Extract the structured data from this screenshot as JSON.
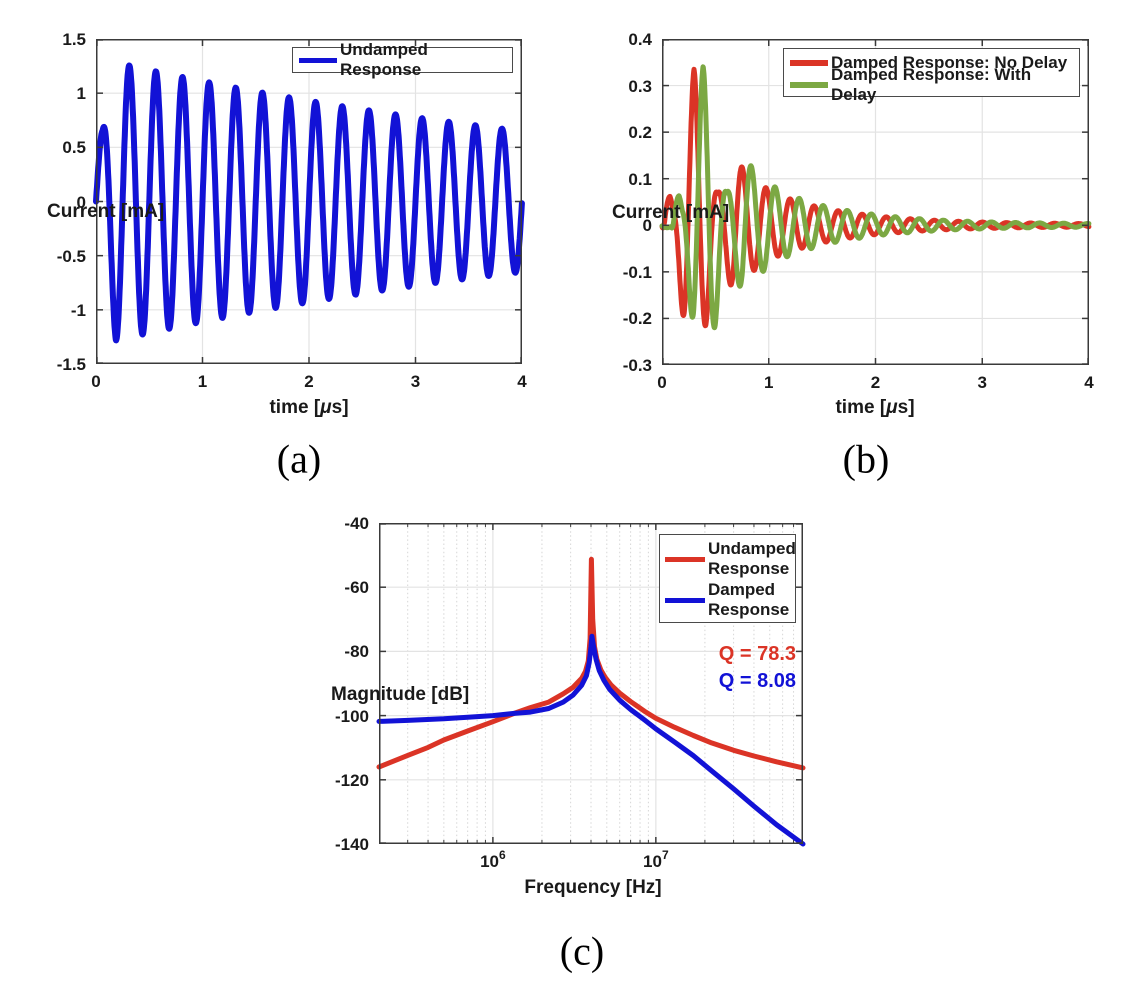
{
  "figure": {
    "captions": {
      "a": "(a)",
      "b": "(b)",
      "c": "(c)"
    }
  },
  "colors": {
    "blue": "#1212D6",
    "red": "#DB3426",
    "green": "#7CA843",
    "axis": "#3a3a3a",
    "grid": "#e3e3e3",
    "minor_grid": "#d6d6d6",
    "text": "#1a1a1a"
  },
  "chart_data": [
    {
      "id": "a",
      "type": "line",
      "xlabel_pre": "time [",
      "xlabel_mu": "μ",
      "xlabel_post": "s]",
      "ylabel": "Current [mA]",
      "xlim": [
        0,
        4
      ],
      "ylim": [
        -1.5,
        1.5
      ],
      "xticks": [
        {
          "v": 0,
          "label": "0"
        },
        {
          "v": 1,
          "label": "1"
        },
        {
          "v": 2,
          "label": "2"
        },
        {
          "v": 3,
          "label": "3"
        },
        {
          "v": 4,
          "label": "4"
        }
      ],
      "yticks": [
        {
          "v": 1.5,
          "label": "1.5"
        },
        {
          "v": 1,
          "label": "1"
        },
        {
          "v": 0.5,
          "label": "0.5"
        },
        {
          "v": 0,
          "label": "0"
        },
        {
          "v": -0.5,
          "label": "-0.5"
        },
        {
          "v": -1,
          "label": "-1"
        },
        {
          "v": -1.5,
          "label": "-1.5"
        }
      ],
      "xgrid": [
        1,
        2,
        3
      ],
      "ygrid": [
        -1,
        -0.5,
        0,
        0.5,
        1
      ],
      "series": [
        {
          "name": "Undamped Response",
          "color_key": "blue",
          "model": "envelope_modulated_sine",
          "freq_cycles_per_us": 4.0,
          "phase_rad": 0,
          "delay_us": 0,
          "amplitude_scale": 1,
          "envelope_t_mA": [
            [
              0,
              0.6
            ],
            [
              0.0625,
              0.655
            ],
            [
              0.125,
              1.0
            ],
            [
              0.1875,
              1.283
            ],
            [
              0.45,
              1.225
            ],
            [
              0.7,
              1.172
            ],
            [
              0.95,
              1.121
            ],
            [
              1.2,
              1.072
            ],
            [
              1.45,
              1.025
            ],
            [
              1.7,
              0.98
            ],
            [
              1.95,
              0.938
            ],
            [
              2.2,
              0.897
            ],
            [
              2.45,
              0.858
            ],
            [
              2.7,
              0.82
            ],
            [
              2.95,
              0.785
            ],
            [
              3.2,
              0.75
            ],
            [
              3.45,
              0.718
            ],
            [
              3.7,
              0.686
            ],
            [
              4.0,
              0.65
            ]
          ]
        }
      ]
    },
    {
      "id": "b",
      "type": "line",
      "xlabel_pre": "time [",
      "xlabel_mu": "μ",
      "xlabel_post": "s]",
      "ylabel": "Current [mA]",
      "xlim": [
        0,
        4
      ],
      "ylim": [
        -0.3,
        0.4
      ],
      "xticks": [
        {
          "v": 0,
          "label": "0"
        },
        {
          "v": 1,
          "label": "1"
        },
        {
          "v": 2,
          "label": "2"
        },
        {
          "v": 3,
          "label": "3"
        },
        {
          "v": 4,
          "label": "4"
        }
      ],
      "yticks": [
        {
          "v": 0.4,
          "label": "0.4"
        },
        {
          "v": 0.3,
          "label": "0.3"
        },
        {
          "v": 0.2,
          "label": "0.2"
        },
        {
          "v": 0.1,
          "label": "0.1"
        },
        {
          "v": 0,
          "label": "0"
        },
        {
          "v": -0.1,
          "label": "-0.1"
        },
        {
          "v": -0.2,
          "label": "-0.2"
        },
        {
          "v": -0.3,
          "label": "-0.3"
        }
      ],
      "xgrid": [
        1,
        2,
        3
      ],
      "ygrid": [
        0.3,
        0.2,
        0.1,
        0,
        -0.1,
        -0.2
      ],
      "series": [
        {
          "name": "Damped Response: No Delay",
          "color_key": "red",
          "model": "envelope_modulated_sine",
          "freq_cycles_per_us": 4.44,
          "phase_rad": -0.515,
          "delay_us": 0,
          "amplitude_scale": 1,
          "envelope_t_mA": [
            [
              0,
              0.005
            ],
            [
              0.03,
              0.062
            ],
            [
              0.075,
              0.062
            ],
            [
              0.105,
              0.045
            ],
            [
              0.125,
              0.062
            ],
            [
              0.16,
              0.12
            ],
            [
              0.21,
              0.228
            ],
            [
              0.3,
              0.335
            ],
            [
              0.41,
              0.215
            ],
            [
              0.47,
              0.12
            ],
            [
              0.52,
              0.068
            ],
            [
              0.6,
              0.1
            ],
            [
              0.67,
              0.148
            ],
            [
              0.75,
              0.125
            ],
            [
              0.82,
              0.1
            ],
            [
              0.92,
              0.093
            ],
            [
              1.0,
              0.075
            ],
            [
              1.15,
              0.06
            ],
            [
              1.3,
              0.05
            ],
            [
              1.45,
              0.04
            ],
            [
              1.6,
              0.033
            ],
            [
              1.8,
              0.026
            ],
            [
              2.0,
              0.02
            ],
            [
              2.2,
              0.016
            ],
            [
              2.45,
              0.012
            ],
            [
              2.7,
              0.009
            ],
            [
              3.0,
              0.007
            ],
            [
              3.3,
              0.0055
            ],
            [
              3.6,
              0.0045
            ],
            [
              4.0,
              0.0035
            ]
          ]
        },
        {
          "name": "Damped Response: With Delay",
          "color_key": "green",
          "model": "envelope_modulated_sine",
          "freq_cycles_per_us": 4.44,
          "phase_rad": -0.515,
          "delay_us": 0.085,
          "amplitude_scale": 1.02,
          "envelope_t_mA": [
            [
              0,
              0.005
            ],
            [
              0.03,
              0.062
            ],
            [
              0.075,
              0.062
            ],
            [
              0.105,
              0.045
            ],
            [
              0.125,
              0.062
            ],
            [
              0.16,
              0.12
            ],
            [
              0.21,
              0.228
            ],
            [
              0.3,
              0.335
            ],
            [
              0.41,
              0.215
            ],
            [
              0.47,
              0.12
            ],
            [
              0.52,
              0.068
            ],
            [
              0.6,
              0.1
            ],
            [
              0.67,
              0.148
            ],
            [
              0.75,
              0.125
            ],
            [
              0.82,
              0.1
            ],
            [
              0.92,
              0.093
            ],
            [
              1.0,
              0.075
            ],
            [
              1.15,
              0.06
            ],
            [
              1.3,
              0.05
            ],
            [
              1.45,
              0.04
            ],
            [
              1.6,
              0.033
            ],
            [
              1.8,
              0.026
            ],
            [
              2.0,
              0.02
            ],
            [
              2.2,
              0.016
            ],
            [
              2.45,
              0.012
            ],
            [
              2.7,
              0.009
            ],
            [
              3.0,
              0.007
            ],
            [
              3.3,
              0.0055
            ],
            [
              3.6,
              0.0045
            ],
            [
              4.0,
              0.0035
            ]
          ]
        }
      ]
    },
    {
      "id": "c",
      "type": "line_logx",
      "xlabel": "Frequency [Hz]",
      "ylabel": "Magnitude [dB]",
      "xlim": [
        200000,
        80000000
      ],
      "ylim": [
        -140,
        -40
      ],
      "xticks": [
        {
          "v": 1000000,
          "base": "10",
          "exp": "6"
        },
        {
          "v": 10000000,
          "base": "10",
          "exp": "7"
        }
      ],
      "yticks": [
        {
          "v": -40,
          "label": "-40"
        },
        {
          "v": -60,
          "label": "-60"
        },
        {
          "v": -80,
          "label": "-80"
        },
        {
          "v": -100,
          "label": "-100"
        },
        {
          "v": -120,
          "label": "-120"
        },
        {
          "v": -140,
          "label": "-140"
        }
      ],
      "ygrid": [
        -60,
        -80,
        -100,
        -120
      ],
      "resonance_hz": 4000000,
      "series": [
        {
          "name": "Undamped Response",
          "color_key": "red",
          "points_hz_db": [
            [
              200000,
              -116.0
            ],
            [
              300000,
              -112.4
            ],
            [
              400000,
              -109.9
            ],
            [
              500000,
              -107.6
            ],
            [
              700000,
              -104.8
            ],
            [
              1000000,
              -101.9
            ],
            [
              1350000,
              -99.3
            ],
            [
              1700000,
              -97.5
            ],
            [
              2200000,
              -95.8
            ],
            [
              2700000,
              -93.2
            ],
            [
              3100000,
              -91.2
            ],
            [
              3500000,
              -88.4
            ],
            [
              3700000,
              -86.2
            ],
            [
              3850000,
              -83.0
            ],
            [
              3950000,
              -76.0
            ],
            [
              4020000,
              -51.3
            ],
            [
              4100000,
              -70.0
            ],
            [
              4200000,
              -78.5
            ],
            [
              4350000,
              -82.5
            ],
            [
              4600000,
              -85.8
            ],
            [
              4900000,
              -88.2
            ],
            [
              5300000,
              -90.4
            ],
            [
              6000000,
              -93.0
            ],
            [
              7000000,
              -95.6
            ],
            [
              8500000,
              -98.6
            ],
            [
              10000000,
              -100.8
            ],
            [
              13000000,
              -103.6
            ],
            [
              17000000,
              -106.2
            ],
            [
              22000000,
              -108.5
            ],
            [
              30000000,
              -110.8
            ],
            [
              40000000,
              -112.6
            ],
            [
              55000000,
              -114.4
            ],
            [
              80000000,
              -116.3
            ]
          ]
        },
        {
          "name": "Damped Response",
          "color_key": "blue",
          "points_hz_db": [
            [
              200000,
              -101.8
            ],
            [
              300000,
              -101.5
            ],
            [
              500000,
              -101.0
            ],
            [
              700000,
              -100.5
            ],
            [
              1000000,
              -100.0
            ],
            [
              1350000,
              -99.3
            ],
            [
              1700000,
              -98.9
            ],
            [
              2200000,
              -97.8
            ],
            [
              2700000,
              -95.8
            ],
            [
              3100000,
              -93.6
            ],
            [
              3500000,
              -90.6
            ],
            [
              3750000,
              -87.6
            ],
            [
              3900000,
              -83.5
            ],
            [
              4000000,
              -78.5
            ],
            [
              4050000,
              -75.3
            ],
            [
              4150000,
              -78.5
            ],
            [
              4300000,
              -82.5
            ],
            [
              4500000,
              -86.0
            ],
            [
              4800000,
              -89.0
            ],
            [
              5200000,
              -91.8
            ],
            [
              6000000,
              -95.2
            ],
            [
              7000000,
              -98.1
            ],
            [
              8500000,
              -101.3
            ],
            [
              10000000,
              -104.1
            ],
            [
              13000000,
              -108.2
            ],
            [
              17000000,
              -112.5
            ],
            [
              22000000,
              -117.2
            ],
            [
              30000000,
              -122.8
            ],
            [
              40000000,
              -128.2
            ],
            [
              55000000,
              -134.0
            ],
            [
              80000000,
              -140.0
            ]
          ]
        }
      ],
      "annotations": [
        {
          "text": "Q = 78.3",
          "color_key": "red"
        },
        {
          "text": "Q = 8.08",
          "color_key": "blue"
        }
      ]
    }
  ]
}
